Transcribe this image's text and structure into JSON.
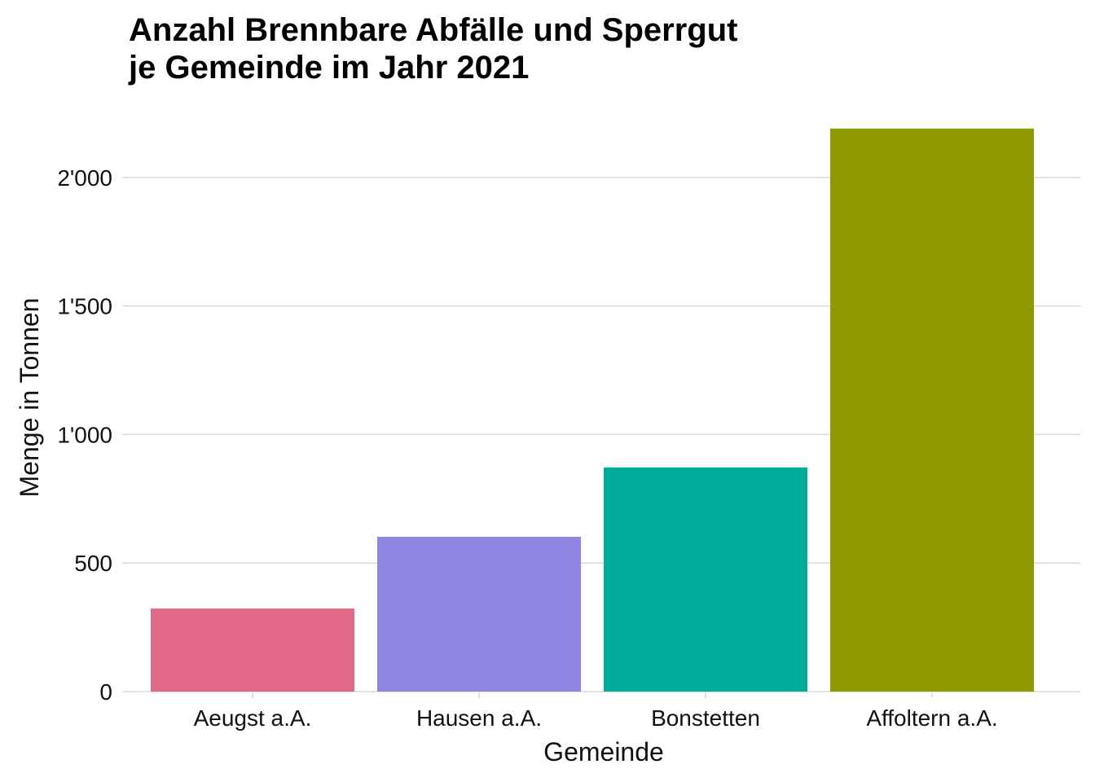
{
  "chart_data": {
    "type": "bar",
    "title": [
      "Anzahl Brennbare Abfälle und Sperrgut",
      "je Gemeinde im Jahr 2021"
    ],
    "xlabel": "Gemeinde",
    "ylabel": "Menge in Tonnen",
    "categories": [
      "Aeugst a.A.",
      "Hausen a.A.",
      "Bonstetten",
      "Affoltern a.A."
    ],
    "values": [
      323,
      602,
      872,
      2190
    ],
    "colors": [
      "#e06986",
      "#9185e4",
      "#00ad9a",
      "#8f9a00"
    ],
    "ylim": [
      0,
      2300
    ],
    "yticks": [
      0,
      500,
      1000,
      1500,
      2000
    ],
    "ytick_labels": [
      "0",
      "500",
      "1'000",
      "1'500",
      "2'000"
    ],
    "grid": true,
    "legend": "none"
  }
}
